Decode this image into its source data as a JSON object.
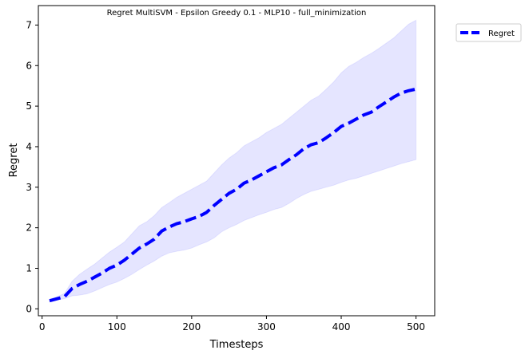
{
  "chart_data": {
    "type": "line",
    "title": "Regret MultiSVM - Epsilon Greedy 0.1 - MLP10 - full_minimization",
    "xlabel": "Timesteps",
    "ylabel": "Regret",
    "xlim": [
      -5,
      525
    ],
    "ylim": [
      -0.17,
      7.48
    ],
    "xticks": [
      0,
      100,
      200,
      300,
      400,
      500
    ],
    "yticks": [
      0,
      1,
      2,
      3,
      4,
      5,
      6,
      7
    ],
    "grid": false,
    "legend_position": "outside-top-right",
    "series": [
      {
        "name": "Regret",
        "color": "#0000ff",
        "line_style": "dashed",
        "band_color": "#0000ff",
        "x": [
          10,
          20,
          30,
          40,
          50,
          60,
          70,
          80,
          90,
          100,
          110,
          120,
          130,
          140,
          150,
          160,
          170,
          180,
          190,
          200,
          210,
          220,
          230,
          240,
          250,
          260,
          270,
          280,
          290,
          300,
          310,
          320,
          330,
          340,
          350,
          360,
          370,
          380,
          390,
          400,
          410,
          420,
          430,
          440,
          450,
          460,
          470,
          480,
          490,
          500
        ],
        "values": [
          0.2,
          0.25,
          0.3,
          0.5,
          0.6,
          0.68,
          0.78,
          0.88,
          1.0,
          1.08,
          1.2,
          1.35,
          1.5,
          1.6,
          1.72,
          1.92,
          2.02,
          2.1,
          2.15,
          2.22,
          2.28,
          2.38,
          2.55,
          2.7,
          2.85,
          2.95,
          3.1,
          3.18,
          3.28,
          3.38,
          3.48,
          3.55,
          3.68,
          3.8,
          3.95,
          4.05,
          4.1,
          4.22,
          4.35,
          4.5,
          4.58,
          4.68,
          4.78,
          4.85,
          4.98,
          5.1,
          5.22,
          5.32,
          5.38,
          5.42
        ],
        "lower": [
          0.17,
          0.22,
          0.25,
          0.32,
          0.34,
          0.37,
          0.44,
          0.52,
          0.6,
          0.66,
          0.75,
          0.85,
          0.97,
          1.08,
          1.18,
          1.3,
          1.38,
          1.42,
          1.45,
          1.5,
          1.58,
          1.65,
          1.75,
          1.9,
          2.0,
          2.08,
          2.18,
          2.25,
          2.32,
          2.38,
          2.45,
          2.5,
          2.6,
          2.72,
          2.82,
          2.9,
          2.95,
          3.0,
          3.05,
          3.12,
          3.18,
          3.22,
          3.28,
          3.34,
          3.4,
          3.46,
          3.52,
          3.58,
          3.63,
          3.68
        ],
        "upper": [
          0.23,
          0.3,
          0.38,
          0.68,
          0.85,
          0.98,
          1.1,
          1.25,
          1.4,
          1.52,
          1.65,
          1.85,
          2.05,
          2.15,
          2.3,
          2.5,
          2.62,
          2.75,
          2.85,
          2.95,
          3.05,
          3.15,
          3.35,
          3.55,
          3.72,
          3.85,
          4.02,
          4.12,
          4.22,
          4.35,
          4.45,
          4.55,
          4.7,
          4.85,
          5.0,
          5.15,
          5.25,
          5.42,
          5.6,
          5.82,
          5.98,
          6.08,
          6.2,
          6.3,
          6.42,
          6.55,
          6.68,
          6.85,
          7.02,
          7.12
        ]
      }
    ]
  }
}
